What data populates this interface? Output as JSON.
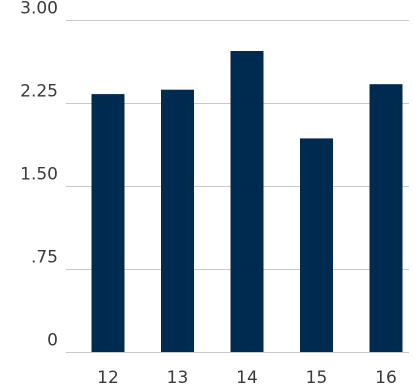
{
  "chart_data": {
    "type": "bar",
    "title": "",
    "xlabel": "",
    "ylabel": "",
    "categories": [
      "12",
      "13",
      "14",
      "15",
      "16"
    ],
    "values": [
      2.33,
      2.37,
      2.72,
      1.93,
      2.42
    ],
    "ylim": [
      0,
      3
    ],
    "yticks": [
      {
        "value": 0,
        "label": "0"
      },
      {
        "value": 0.75,
        "label": ".75"
      },
      {
        "value": 1.5,
        "label": "1.50"
      },
      {
        "value": 2.25,
        "label": "2.25"
      },
      {
        "value": 3,
        "label": "3.00"
      }
    ],
    "grid": true,
    "legend": "none",
    "bar_color": "#002b50",
    "grid_color": "#c8c8c8",
    "text_color": "#3a3a3a"
  }
}
